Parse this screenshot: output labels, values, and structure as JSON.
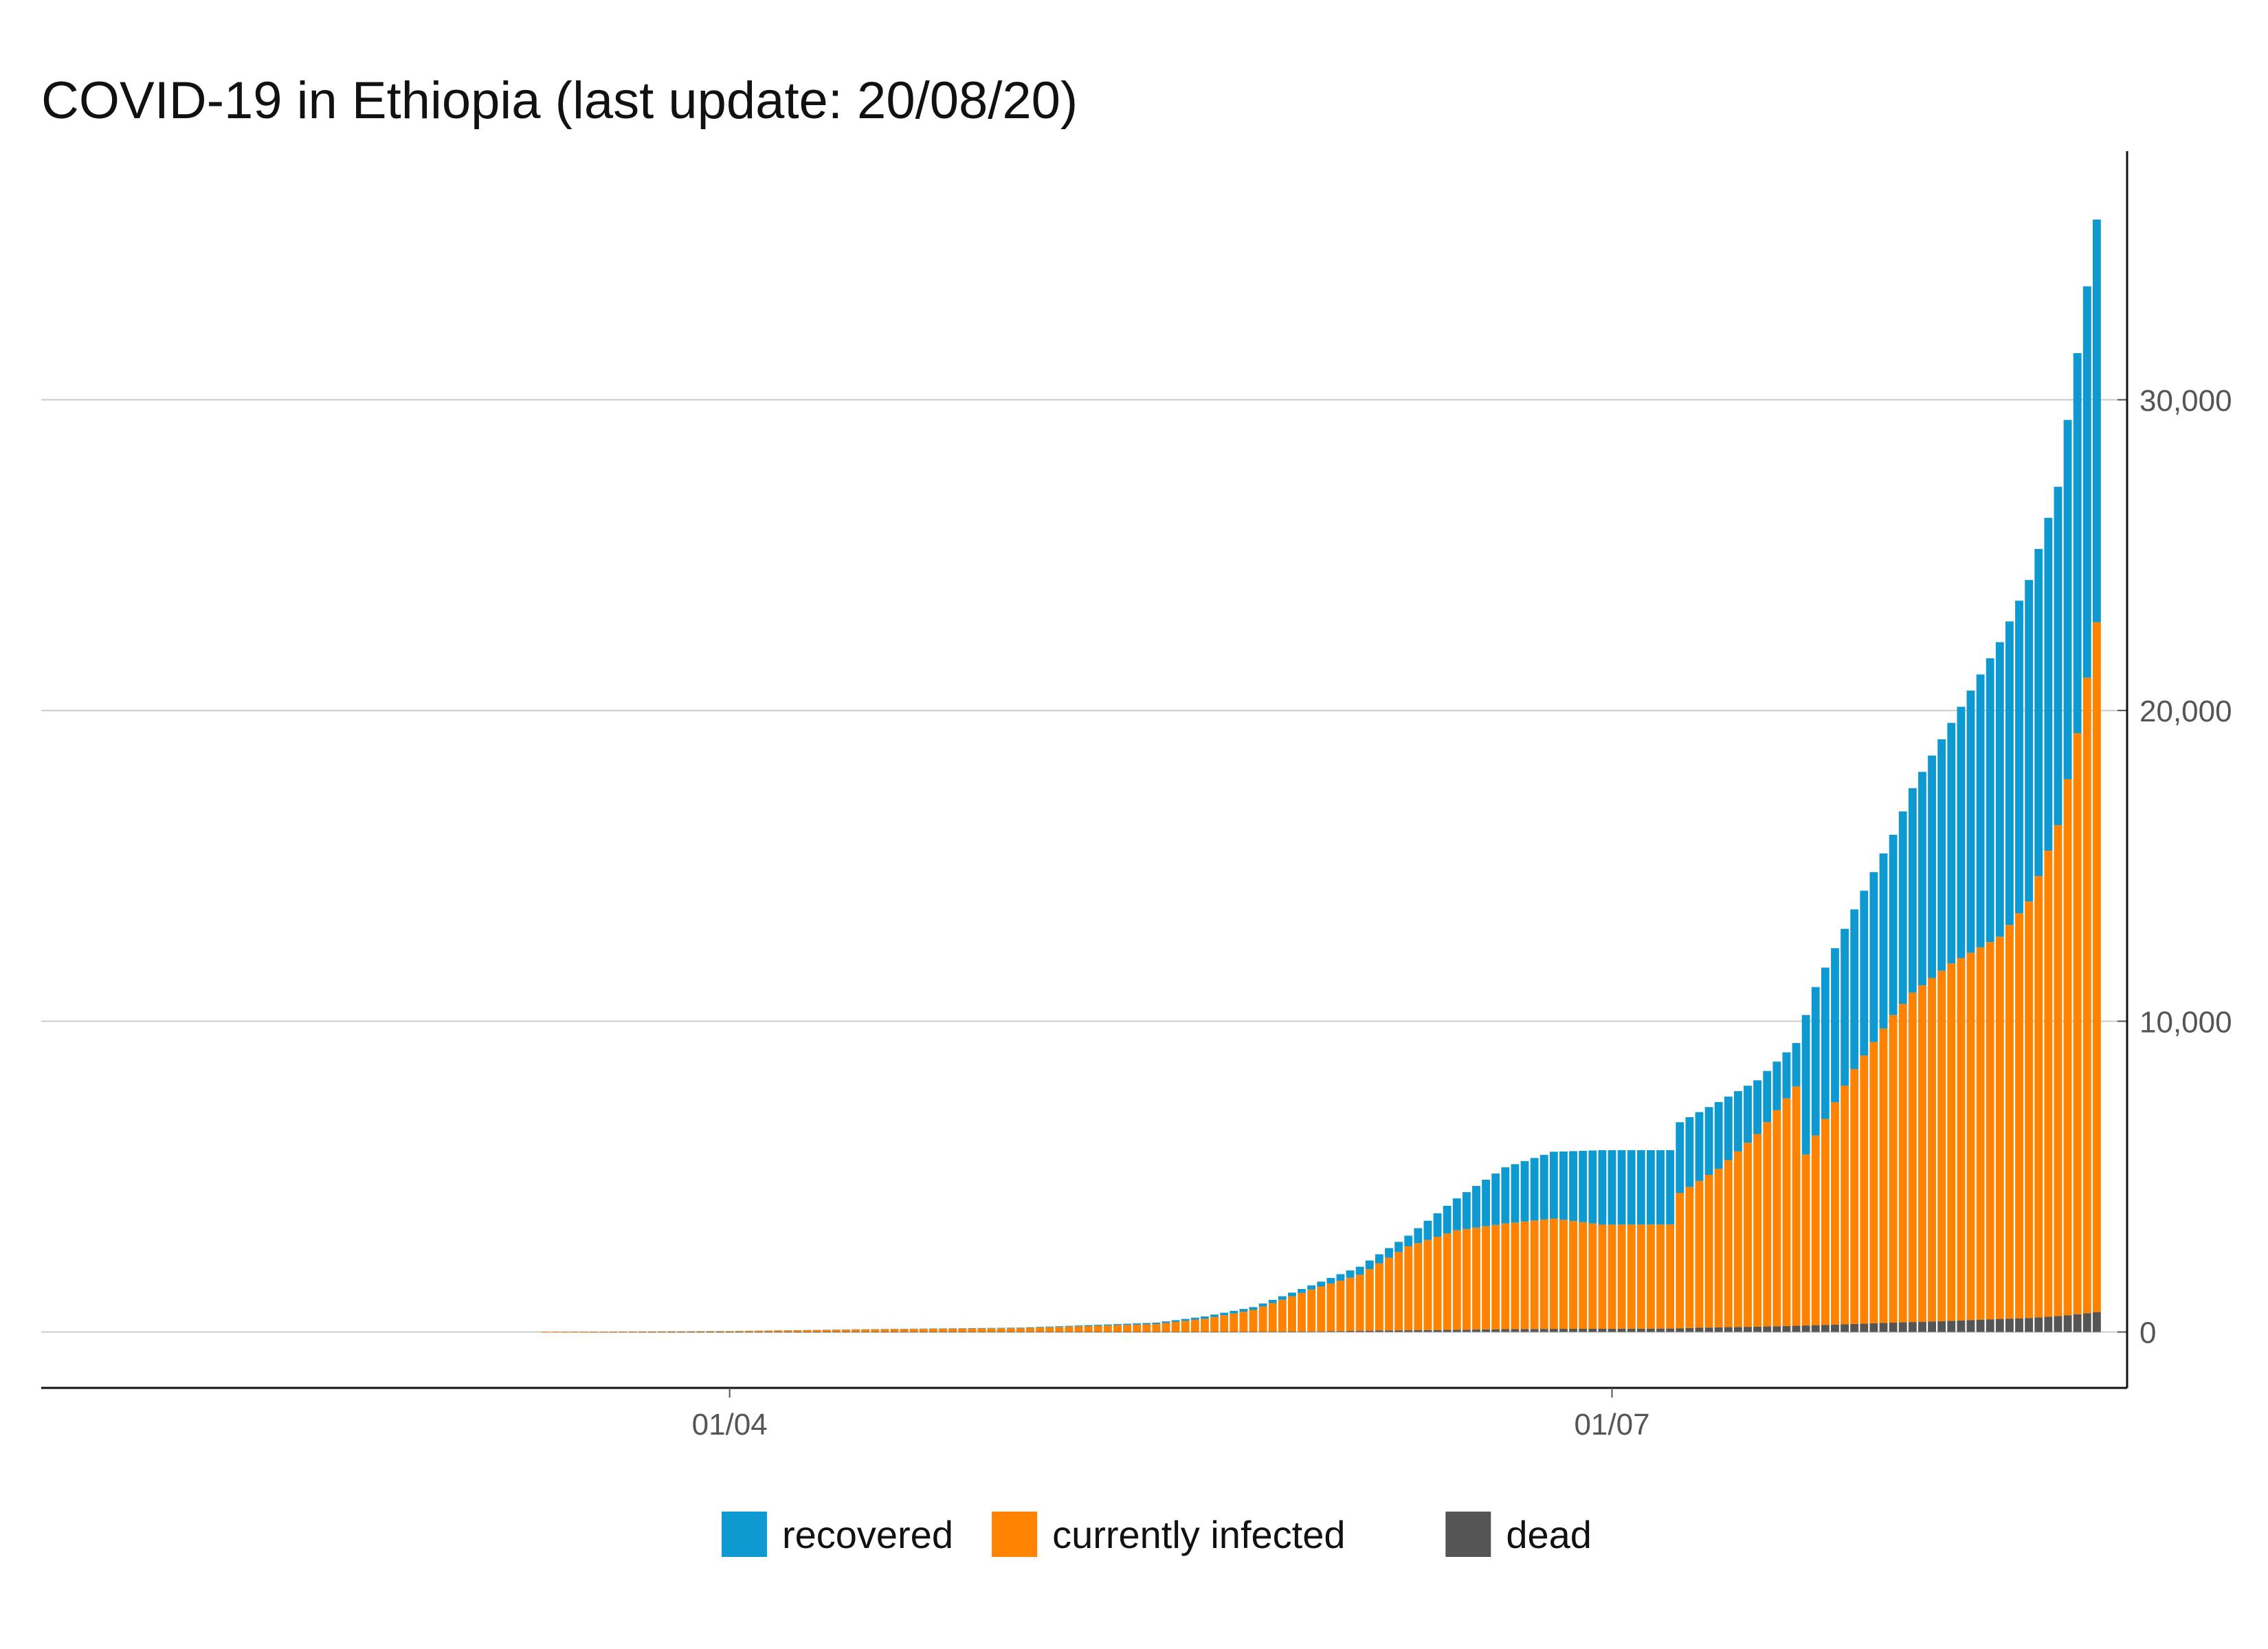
{
  "chart_data": {
    "type": "bar",
    "stacked": true,
    "title": "COVID-19 in Ethiopia (last update: 20/08/20)",
    "xlabel": "",
    "ylabel": "",
    "x_axis": {
      "type": "date",
      "start": "2020-01-22",
      "end": "2020-08-20",
      "ticks": [
        {
          "date": "2020-04-01",
          "label": "01/04"
        },
        {
          "date": "2020-07-01",
          "label": "01/07"
        }
      ]
    },
    "y_axis": {
      "position": "right",
      "ylim": [
        -1800,
        38000
      ],
      "ticks": [
        {
          "value": 0,
          "label": "0"
        },
        {
          "value": 10000,
          "label": "10,000"
        },
        {
          "value": 20000,
          "label": "20,000"
        },
        {
          "value": 30000,
          "label": "30,000"
        }
      ]
    },
    "grid": "horizontal",
    "legend_position": "bottom",
    "stack_order": [
      "dead",
      "currently infected",
      "recovered"
    ],
    "legend": [
      {
        "name": "recovered",
        "color": "#0E9AD1"
      },
      {
        "name": "currently infected",
        "color": "#FF8200"
      },
      {
        "name": "dead",
        "color": "#555555"
      }
    ],
    "series_keyframes": {
      "dates": [
        "2020-03-13",
        "2020-04-01",
        "2020-04-15",
        "2020-05-01",
        "2020-05-15",
        "2020-05-20",
        "2020-05-25",
        "2020-05-31",
        "2020-06-05",
        "2020-06-10",
        "2020-06-15",
        "2020-06-20",
        "2020-06-25",
        "2020-06-30",
        "2020-07-07",
        "2020-07-08",
        "2020-07-12",
        "2020-07-16",
        "2020-07-20",
        "2020-07-21",
        "2020-07-22",
        "2020-07-26",
        "2020-07-30",
        "2020-08-01",
        "2020-08-05",
        "2020-08-10",
        "2020-08-13",
        "2020-08-16",
        "2020-08-18",
        "2020-08-20"
      ],
      "total": [
        1,
        30,
        90,
        140,
        300,
        500,
        800,
        1500,
        2100,
        3100,
        4300,
        5300,
        5800,
        5850,
        5850,
        6750,
        7400,
        8100,
        9300,
        10200,
        11100,
        13600,
        16000,
        17500,
        19600,
        22200,
        24200,
        27200,
        31500,
        35800
      ],
      "currently_infected": [
        1,
        25,
        80,
        120,
        250,
        420,
        700,
        1350,
        1800,
        2700,
        3200,
        3400,
        3550,
        3350,
        3350,
        4350,
        5100,
        6200,
        7700,
        5500,
        6100,
        8200,
        9900,
        10600,
        11500,
        12300,
        13400,
        15800,
        18700,
        22200
      ],
      "dead": [
        0,
        1,
        3,
        5,
        5,
        6,
        8,
        15,
        40,
        55,
        70,
        90,
        100,
        103,
        110,
        120,
        150,
        170,
        200,
        210,
        220,
        260,
        300,
        320,
        360,
        420,
        450,
        510,
        570,
        640
      ]
    }
  }
}
